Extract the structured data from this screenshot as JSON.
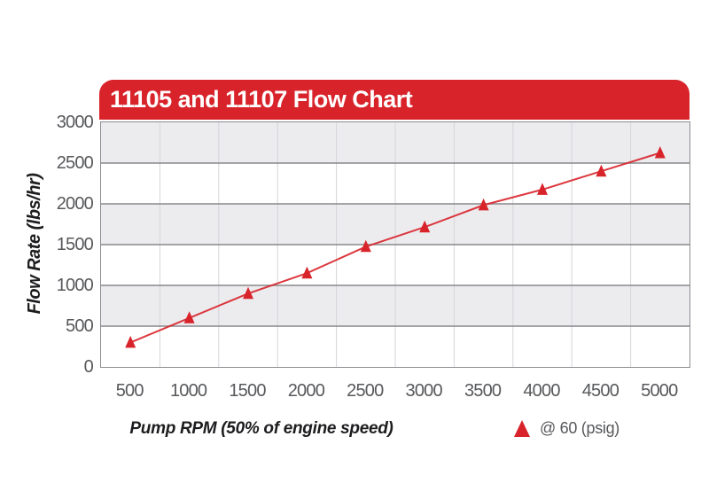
{
  "colors": {
    "accent_red": "#d8232a",
    "band_gray": "#ececef",
    "grid_horizontal": "#88888c",
    "grid_vertical": "#d6d6da",
    "plot_border": "#8e8e92",
    "tick_text": "#57585b",
    "axis_title_text": "#1d1d1f",
    "banner_text": "#ffffff"
  },
  "header": {
    "title": "11105 and 11107 Flow Chart"
  },
  "chart_data": {
    "type": "line",
    "title": "11105 and 11107 Flow Chart",
    "xlabel": "Pump RPM (50% of engine speed)",
    "ylabel": "Flow Rate (lbs/hr)",
    "x_categories": [
      500,
      1000,
      1500,
      2000,
      2500,
      3000,
      3500,
      4000,
      4500,
      5000
    ],
    "y_ticks": [
      0,
      500,
      1000,
      1500,
      2000,
      2500,
      3000
    ],
    "ylim": [
      0,
      3000
    ],
    "series": [
      {
        "name": "@ 60 (psig)",
        "marker": "triangle",
        "color": "#d8232a",
        "values": [
          300,
          600,
          900,
          1150,
          1475,
          1715,
          1985,
          2175,
          2400,
          2625
        ]
      }
    ],
    "grid": {
      "horizontal": true,
      "vertical_between_categories": true,
      "alternating_row_bands": true
    },
    "legend_position": "bottom-right"
  }
}
